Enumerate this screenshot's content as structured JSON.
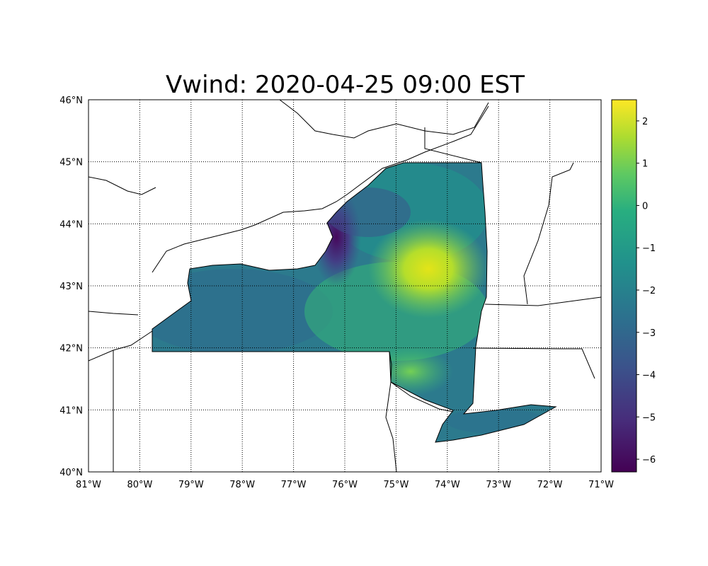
{
  "title": "Vwind: 2020-04-25 09:00 EST",
  "chart_data": {
    "type": "heatmap",
    "title": "Vwind: 2020-04-25 09:00 EST",
    "map_extent": {
      "lon": [
        -81,
        -71
      ],
      "lat": [
        40,
        46
      ]
    },
    "region": "New York State",
    "x_ticks": [
      "81°W",
      "80°W",
      "79°W",
      "78°W",
      "77°W",
      "76°W",
      "75°W",
      "74°W",
      "73°W",
      "72°W",
      "71°W"
    ],
    "y_ticks": [
      "46°N",
      "45°N",
      "44°N",
      "43°N",
      "42°N",
      "41°N",
      "40°N"
    ],
    "grid": true,
    "colormap": "viridis",
    "colorbar": {
      "range": [
        -6.3,
        2.5
      ],
      "ticks": [
        "2",
        "1",
        "0",
        "−1",
        "−2",
        "−3",
        "−4",
        "−5",
        "−6"
      ],
      "placement": "right"
    },
    "typical_value": -2.5,
    "features": [
      {
        "area": "Hudson/Mohawk valley near 74.5°W 43.3°N",
        "value": 2.0
      },
      {
        "area": "Eastern Lake Ontario shore near 76°W 43.8°N",
        "value": -5.5
      },
      {
        "area": "Lower Hudson near 74.5°W 41.6°N",
        "value": 0.5
      }
    ]
  }
}
